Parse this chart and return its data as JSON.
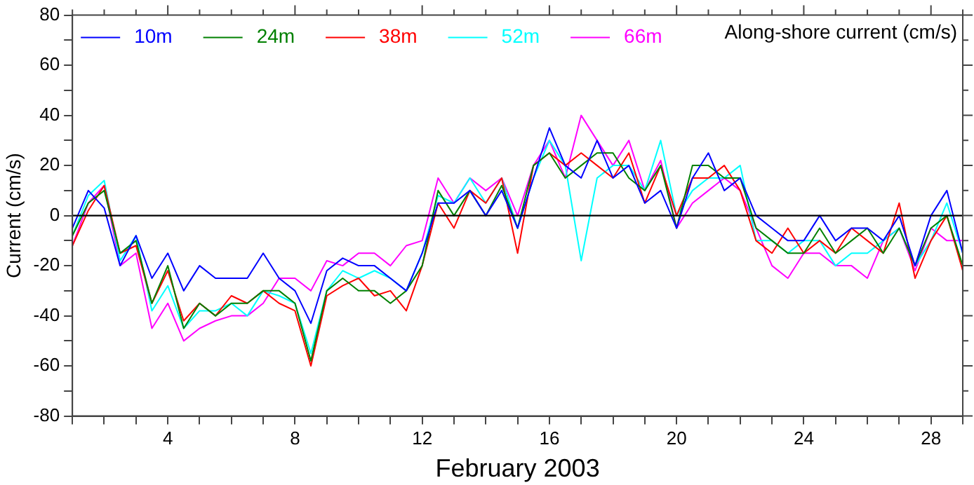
{
  "chart_data": {
    "type": "line",
    "title": "Along-shore current (cm/s)",
    "xlabel": "February 2003",
    "ylabel": "Current (cm/s)",
    "x": [
      1,
      1.5,
      2,
      2.5,
      3,
      3.5,
      4,
      4.5,
      5,
      5.5,
      6,
      6.5,
      7,
      7.5,
      8,
      8.5,
      9,
      9.5,
      10,
      10.5,
      11,
      11.5,
      12,
      12.5,
      13,
      13.5,
      14,
      14.5,
      15,
      15.5,
      16,
      16.5,
      17,
      17.5,
      18,
      18.5,
      19,
      19.5,
      20,
      20.5,
      21,
      21.5,
      22,
      22.5,
      23,
      23.5,
      24,
      24.5,
      25,
      25.5,
      26,
      26.5,
      27,
      27.5,
      28,
      28.5,
      29
    ],
    "series": [
      {
        "name": "10m",
        "color": "#0000ff",
        "values": [
          -5,
          10,
          3,
          -20,
          -8,
          -25,
          -15,
          -30,
          -20,
          -25,
          -25,
          -25,
          -15,
          -25,
          -30,
          -43,
          -22,
          -17,
          -20,
          -20,
          -25,
          -30,
          -15,
          5,
          5,
          10,
          0,
          10,
          -5,
          15,
          35,
          20,
          15,
          30,
          15,
          20,
          5,
          10,
          -5,
          15,
          25,
          10,
          15,
          0,
          -5,
          -10,
          -10,
          0,
          -10,
          -5,
          -5,
          -10,
          0,
          -20,
          0,
          10,
          -15
        ]
      },
      {
        "name": "24m",
        "color": "#008000",
        "values": [
          -8,
          5,
          10,
          -15,
          -10,
          -35,
          -20,
          -45,
          -35,
          -40,
          -35,
          -35,
          -30,
          -30,
          -35,
          -58,
          -30,
          -25,
          -30,
          -30,
          -35,
          -30,
          -20,
          10,
          0,
          10,
          0,
          12,
          -5,
          20,
          25,
          15,
          20,
          25,
          25,
          15,
          10,
          20,
          -5,
          20,
          20,
          15,
          15,
          -5,
          -10,
          -15,
          -15,
          -5,
          -15,
          -10,
          -5,
          -15,
          -5,
          -20,
          -5,
          0,
          -20
        ]
      },
      {
        "name": "38m",
        "color": "#ff0000",
        "values": [
          -12,
          2,
          12,
          -15,
          -12,
          -35,
          -22,
          -42,
          -35,
          -40,
          -32,
          -35,
          -30,
          -35,
          -38,
          -60,
          -32,
          -28,
          -25,
          -32,
          -30,
          -38,
          -20,
          5,
          -5,
          10,
          5,
          15,
          -15,
          20,
          25,
          20,
          25,
          20,
          15,
          25,
          5,
          20,
          0,
          15,
          15,
          20,
          10,
          -10,
          -15,
          -5,
          -15,
          -10,
          -15,
          -5,
          -10,
          -15,
          5,
          -25,
          -10,
          0,
          -22
        ]
      },
      {
        "name": "52m",
        "color": "#00ffff",
        "values": [
          -8,
          8,
          14,
          -18,
          -8,
          -38,
          -28,
          -45,
          -38,
          -38,
          -35,
          -40,
          -30,
          -32,
          -35,
          -55,
          -30,
          -22,
          -25,
          -22,
          -25,
          -30,
          -15,
          8,
          5,
          15,
          5,
          15,
          -5,
          15,
          30,
          20,
          -18,
          15,
          20,
          20,
          10,
          30,
          0,
          10,
          15,
          15,
          20,
          -10,
          -10,
          -15,
          -10,
          -10,
          -20,
          -15,
          -15,
          -10,
          -5,
          -20,
          -10,
          5,
          -15
        ]
      },
      {
        "name": "66m",
        "color": "#ff00ff",
        "values": [
          -12,
          5,
          12,
          -20,
          -15,
          -45,
          -35,
          -50,
          -45,
          -42,
          -40,
          -40,
          -35,
          -25,
          -25,
          -30,
          -18,
          -20,
          -15,
          -15,
          -20,
          -12,
          -10,
          15,
          5,
          15,
          10,
          15,
          0,
          20,
          30,
          15,
          40,
          30,
          20,
          30,
          10,
          22,
          -5,
          5,
          10,
          15,
          10,
          -5,
          -20,
          -25,
          -15,
          -15,
          -20,
          -20,
          -25,
          -10,
          -5,
          -22,
          -5,
          -10,
          -10
        ]
      }
    ],
    "xlim": [
      1,
      29
    ],
    "xticks": [
      {
        "value": 1,
        "label": null
      },
      {
        "value": 2,
        "label": null
      },
      {
        "value": 3,
        "label": null
      },
      4,
      {
        "value": 5,
        "label": null
      },
      {
        "value": 6,
        "label": null
      },
      {
        "value": 7,
        "label": null
      },
      8,
      {
        "value": 9,
        "label": null
      },
      {
        "value": 10,
        "label": null
      },
      {
        "value": 11,
        "label": null
      },
      12,
      {
        "value": 13,
        "label": null
      },
      {
        "value": 14,
        "label": null
      },
      {
        "value": 15,
        "label": null
      },
      16,
      {
        "value": 17,
        "label": null
      },
      {
        "value": 18,
        "label": null
      },
      {
        "value": 19,
        "label": null
      },
      20,
      {
        "value": 21,
        "label": null
      },
      {
        "value": 22,
        "label": null
      },
      {
        "value": 23,
        "label": null
      },
      24,
      {
        "value": 25,
        "label": null
      },
      {
        "value": 26,
        "label": null
      },
      {
        "value": 27,
        "label": null
      },
      28,
      {
        "value": 29,
        "label": null
      }
    ],
    "ylim": [
      -80,
      80
    ],
    "yticks": [
      -80,
      {
        "value": -70,
        "label": null
      },
      -60,
      {
        "value": -50,
        "label": null
      },
      -40,
      {
        "value": -30,
        "label": null
      },
      -20,
      {
        "value": -10,
        "label": null
      },
      0,
      {
        "value": 10,
        "label": null
      },
      20,
      {
        "value": 30,
        "label": null
      },
      40,
      {
        "value": 50,
        "label": null
      },
      60,
      {
        "value": 70,
        "label": null
      },
      80
    ],
    "ref_lines": [
      {
        "axis": "y",
        "value": 0,
        "color": "#000000"
      }
    ],
    "grid": false,
    "legend": "top left",
    "marker": "none",
    "line_style": "solid"
  }
}
